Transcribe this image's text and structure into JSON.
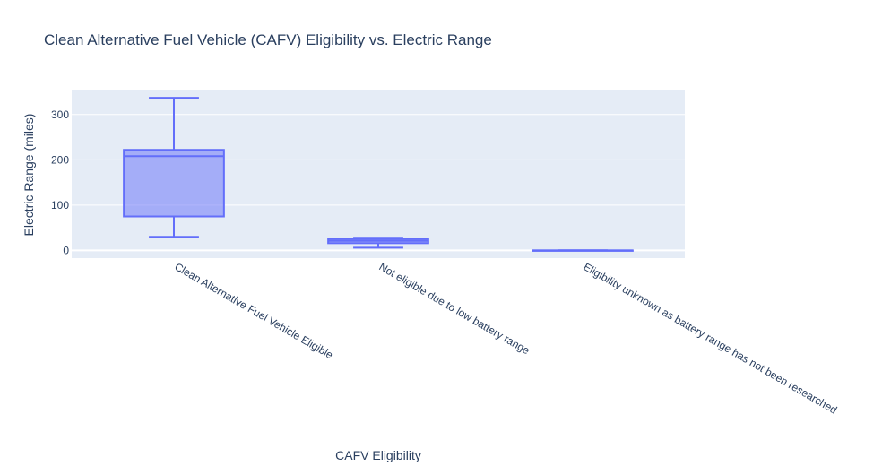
{
  "chart_data": {
    "type": "box",
    "title": "Clean Alternative Fuel Vehicle (CAFV) Eligibility vs. Electric Range",
    "xlabel": "CAFV Eligibility",
    "ylabel": "Electric Range (miles)",
    "ylim": [
      -17,
      355
    ],
    "yticks": [
      0,
      100,
      200,
      300
    ],
    "grid": true,
    "categories": [
      "Clean Alternative Fuel Vehicle Eligible",
      "Not eligible due to low battery range",
      "Eligibility unknown as battery range has not been researched"
    ],
    "boxes": [
      {
        "category": "Clean Alternative Fuel Vehicle Eligible",
        "min": 30,
        "q1": 75,
        "median": 208,
        "q3": 222,
        "max": 337
      },
      {
        "category": "Not eligible due to low battery range",
        "min": 6,
        "q1": 16,
        "median": 21,
        "q3": 25,
        "max": 28
      },
      {
        "category": "Eligibility unknown as battery range has not been researched",
        "min": 0,
        "q1": 0,
        "median": 0,
        "q3": 0,
        "max": 0
      }
    ],
    "colors": {
      "box_line": "#636efa",
      "box_fill": "#636efa",
      "plot_bg": "#e5ecf6",
      "grid": "#ffffff",
      "text": "#2a3f5f"
    }
  }
}
